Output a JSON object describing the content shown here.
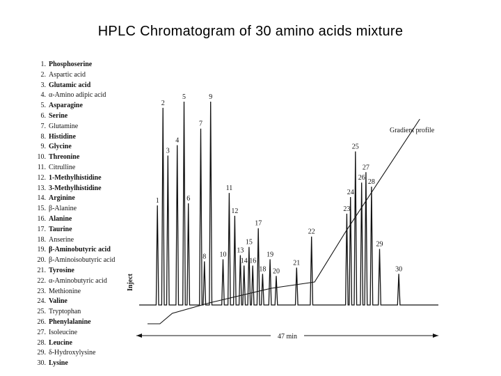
{
  "title": "HPLC Chromatogram of 30 amino acids mixture",
  "chart_data": {
    "type": "line",
    "title": "HPLC Chromatogram of 30 amino acids mixture",
    "legend": [
      {
        "num": "1.",
        "name": "Phosphoserine",
        "bold": true
      },
      {
        "num": "2.",
        "name": "Aspartic acid",
        "bold": false
      },
      {
        "num": "3.",
        "name": "Glutamic acid",
        "bold": true
      },
      {
        "num": "4.",
        "name": "α-Amino adipic acid",
        "bold": false
      },
      {
        "num": "5.",
        "name": "Asparagine",
        "bold": true
      },
      {
        "num": "6.",
        "name": "Serine",
        "bold": true
      },
      {
        "num": "7.",
        "name": "Glutamine",
        "bold": false
      },
      {
        "num": "8.",
        "name": "Histidine",
        "bold": true
      },
      {
        "num": "9.",
        "name": "Glycine",
        "bold": true
      },
      {
        "num": "10.",
        "name": "Threonine",
        "bold": true
      },
      {
        "num": "11.",
        "name": "Citrulline",
        "bold": false
      },
      {
        "num": "12.",
        "name": "1-Methylhistidine",
        "bold": true
      },
      {
        "num": "13.",
        "name": "3-Methylhistidine",
        "bold": true
      },
      {
        "num": "14.",
        "name": "Arginine",
        "bold": true
      },
      {
        "num": "15.",
        "name": "β-Alanine",
        "bold": false
      },
      {
        "num": "16.",
        "name": "Alanine",
        "bold": true
      },
      {
        "num": "17.",
        "name": "Taurine",
        "bold": true
      },
      {
        "num": "18.",
        "name": "Anserine",
        "bold": false
      },
      {
        "num": "19.",
        "name": "β-Aminobutyric acid",
        "bold": true
      },
      {
        "num": "20.",
        "name": "β-Aminoisobutyric acid",
        "bold": false
      },
      {
        "num": "21.",
        "name": "Tyrosine",
        "bold": true
      },
      {
        "num": "22.",
        "name": "α-Aminobutyric acid",
        "bold": false
      },
      {
        "num": "23.",
        "name": "Methionine",
        "bold": false
      },
      {
        "num": "24.",
        "name": "Valine",
        "bold": true
      },
      {
        "num": "25.",
        "name": "Tryptophan",
        "bold": false
      },
      {
        "num": "26.",
        "name": "Phenylalanine",
        "bold": true
      },
      {
        "num": "27.",
        "name": "Isoleucine",
        "bold": false
      },
      {
        "num": "28.",
        "name": "Leucine",
        "bold": true
      },
      {
        "num": "29.",
        "name": "δ-Hydroxylysine",
        "bold": false
      },
      {
        "num": "30.",
        "name": "Lysine",
        "bold": true
      }
    ],
    "time_total_min": 47,
    "time_label": "47 min",
    "inject_label": "Inject",
    "gradient_label": "Gradient profile",
    "peaks": [
      {
        "label": "1",
        "t": 1.6,
        "h": 0.48
      },
      {
        "label": "2",
        "t": 2.5,
        "h": 0.95
      },
      {
        "label": "3",
        "t": 3.3,
        "h": 0.72
      },
      {
        "label": "4",
        "t": 4.8,
        "h": 0.77
      },
      {
        "label": "5",
        "t": 5.9,
        "h": 0.98
      },
      {
        "label": "6",
        "t": 6.6,
        "h": 0.49
      },
      {
        "label": "7",
        "t": 8.6,
        "h": 0.85
      },
      {
        "label": "8",
        "t": 9.2,
        "h": 0.21
      },
      {
        "label": "9",
        "t": 10.2,
        "h": 0.98
      },
      {
        "label": "10",
        "t": 12.2,
        "h": 0.22
      },
      {
        "label": "11",
        "t": 13.2,
        "h": 0.54
      },
      {
        "label": "12",
        "t": 14.1,
        "h": 0.43
      },
      {
        "label": "13",
        "t": 15.0,
        "h": 0.24
      },
      {
        "label": "14",
        "t": 15.6,
        "h": 0.19
      },
      {
        "label": "15",
        "t": 16.4,
        "h": 0.28
      },
      {
        "label": "16",
        "t": 17.0,
        "h": 0.19
      },
      {
        "label": "17",
        "t": 17.9,
        "h": 0.37
      },
      {
        "label": "18",
        "t": 18.6,
        "h": 0.15
      },
      {
        "label": "19",
        "t": 19.8,
        "h": 0.22
      },
      {
        "label": "20",
        "t": 20.8,
        "h": 0.14
      },
      {
        "label": "21",
        "t": 24.1,
        "h": 0.18
      },
      {
        "label": "22",
        "t": 26.5,
        "h": 0.33
      },
      {
        "label": "23",
        "t": 32.2,
        "h": 0.44
      },
      {
        "label": "24",
        "t": 32.8,
        "h": 0.52
      },
      {
        "label": "25",
        "t": 33.6,
        "h": 0.74
      },
      {
        "label": "26",
        "t": 34.6,
        "h": 0.59
      },
      {
        "label": "27",
        "t": 35.3,
        "h": 0.64
      },
      {
        "label": "28",
        "t": 36.2,
        "h": 0.57
      },
      {
        "label": "29",
        "t": 37.5,
        "h": 0.27
      },
      {
        "label": "30",
        "t": 40.6,
        "h": 0.15
      }
    ],
    "gradient_profile": [
      [
        0,
        0
      ],
      [
        2.0,
        0
      ],
      [
        4.0,
        0.05
      ],
      [
        10,
        0.1
      ],
      [
        20,
        0.17
      ],
      [
        27,
        0.2
      ],
      [
        32,
        0.44
      ],
      [
        36,
        0.62
      ],
      [
        44,
        0.98
      ]
    ]
  }
}
